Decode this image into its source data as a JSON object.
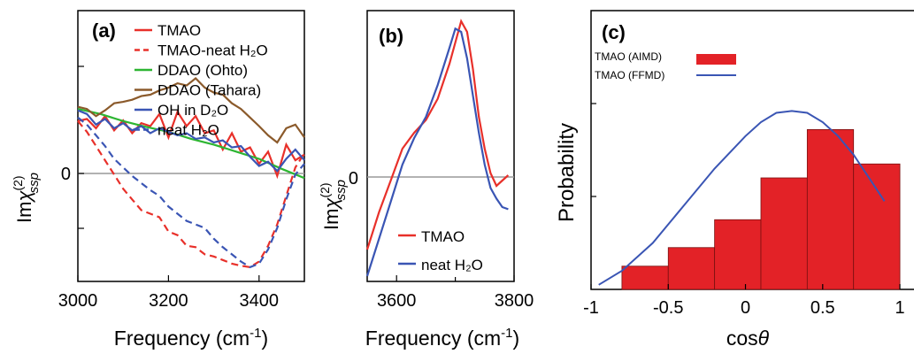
{
  "chart_data": [
    {
      "panel": "(a)",
      "type": "line",
      "xlabel": "Frequency (cm⁻¹)",
      "ylabel": "Imχ(2)ssp",
      "xlim": [
        3000,
        3500
      ],
      "ylim": [
        -2.2,
        1.6
      ],
      "xticks": [
        "3000",
        "3200",
        "3400"
      ],
      "yticks": [
        "0"
      ],
      "legend": "top-right",
      "series": [
        {
          "name": "TMAO",
          "color": "#e8302a",
          "dash": "solid",
          "x": [
            3000,
            3020,
            3040,
            3060,
            3080,
            3100,
            3120,
            3140,
            3160,
            3180,
            3200,
            3220,
            3240,
            3260,
            3280,
            3300,
            3320,
            3340,
            3360,
            3380,
            3400,
            3420,
            3440,
            3460,
            3480,
            3500
          ],
          "y": [
            0.05,
            0.08,
            -0.05,
            0.12,
            -0.08,
            0.06,
            -0.12,
            0.02,
            -0.02,
            0.15,
            -0.18,
            0.18,
            -0.02,
            0.12,
            -0.12,
            -0.08,
            -0.35,
            -0.12,
            -0.38,
            -0.32,
            -0.55,
            -0.38,
            -0.72,
            -0.28,
            -0.5,
            -0.42
          ]
        },
        {
          "name": "TMAO-neat H₂O",
          "color": "#e8302a",
          "dash": "dashed",
          "x": [
            3000,
            3020,
            3040,
            3060,
            3080,
            3100,
            3120,
            3140,
            3160,
            3180,
            3200,
            3220,
            3240,
            3260,
            3280,
            3300,
            3320,
            3340,
            3360,
            3380,
            3400,
            3420,
            3440,
            3460,
            3480,
            3500
          ],
          "y": [
            0.05,
            -0.1,
            -0.3,
            -0.5,
            -0.7,
            -0.9,
            -1.05,
            -1.2,
            -1.25,
            -1.3,
            -1.5,
            -1.55,
            -1.7,
            -1.72,
            -1.82,
            -1.85,
            -1.9,
            -1.95,
            -1.98,
            -2.0,
            -1.92,
            -1.7,
            -1.4,
            -1.0,
            -0.6,
            -0.4
          ]
        },
        {
          "name": "DDAO (Ohto)",
          "color": "#2db532",
          "dash": "solid",
          "x": [
            3000,
            3050,
            3100,
            3150,
            3200,
            3250,
            3300,
            3350,
            3400,
            3450,
            3500
          ],
          "y": [
            0.22,
            0.15,
            0.05,
            -0.03,
            -0.1,
            -0.2,
            -0.28,
            -0.38,
            -0.48,
            -0.62,
            -0.75
          ]
        },
        {
          "name": "DDAO (Tahara)",
          "color": "#8b5a2b",
          "dash": "solid",
          "x": [
            3000,
            3020,
            3040,
            3060,
            3080,
            3100,
            3120,
            3140,
            3160,
            3180,
            3200,
            3220,
            3240,
            3260,
            3280,
            3300,
            3320,
            3340,
            3360,
            3380,
            3400,
            3420,
            3440,
            3460,
            3480,
            3500
          ],
          "y": [
            0.25,
            0.22,
            0.12,
            0.2,
            0.3,
            0.32,
            0.35,
            0.4,
            0.42,
            0.48,
            0.52,
            0.58,
            0.55,
            0.65,
            0.52,
            0.45,
            0.42,
            0.3,
            0.22,
            0.1,
            -0.02,
            -0.15,
            -0.25,
            -0.05,
            0.0,
            -0.18
          ]
        },
        {
          "name": "OH in D₂O",
          "color": "#3a55b4",
          "dash": "solid",
          "x": [
            3000,
            3020,
            3040,
            3060,
            3080,
            3100,
            3120,
            3140,
            3160,
            3180,
            3200,
            3220,
            3240,
            3260,
            3280,
            3300,
            3320,
            3340,
            3360,
            3380,
            3400,
            3420,
            3440,
            3460,
            3480,
            3500
          ],
          "y": [
            0.2,
            0.15,
            0.0,
            0.08,
            -0.05,
            0.02,
            -0.08,
            -0.02,
            -0.12,
            -0.05,
            -0.1,
            -0.15,
            -0.12,
            -0.2,
            -0.18,
            -0.25,
            -0.22,
            -0.32,
            -0.3,
            -0.45,
            -0.58,
            -0.52,
            -0.65,
            -0.48,
            -0.35,
            -0.5
          ]
        },
        {
          "name": "neat H₂O",
          "color": "#3a55b4",
          "dash": "dashed",
          "x": [
            3000,
            3020,
            3040,
            3060,
            3080,
            3100,
            3120,
            3140,
            3160,
            3180,
            3200,
            3220,
            3240,
            3260,
            3280,
            3300,
            3320,
            3340,
            3360,
            3380,
            3400,
            3420,
            3440,
            3460,
            3480,
            3500
          ],
          "y": [
            0.1,
            0.0,
            -0.15,
            -0.3,
            -0.48,
            -0.6,
            -0.72,
            -0.82,
            -0.92,
            -1.0,
            -1.15,
            -1.25,
            -1.35,
            -1.4,
            -1.45,
            -1.6,
            -1.72,
            -1.82,
            -1.92,
            -2.0,
            -1.95,
            -1.75,
            -1.45,
            -1.05,
            -0.7,
            -0.55
          ]
        }
      ]
    },
    {
      "panel": "(b)",
      "type": "line",
      "xlabel": "Frequency (cm⁻¹)",
      "ylabel": "Imχ(2)ssp",
      "xlim": [
        3550,
        3800
      ],
      "ylim": [
        -1.0,
        1.55
      ],
      "xticks": [
        "3600",
        "3800"
      ],
      "yticks": [
        "0"
      ],
      "legend": "bottom-right",
      "series": [
        {
          "name": "TMAO",
          "color": "#e8302a",
          "dash": "solid",
          "x": [
            3550,
            3570,
            3590,
            3610,
            3630,
            3650,
            3670,
            3690,
            3700,
            3710,
            3720,
            3730,
            3740,
            3750,
            3760,
            3770,
            3780,
            3790
          ],
          "y": [
            -0.7,
            -0.35,
            -0.05,
            0.25,
            0.4,
            0.52,
            0.72,
            1.05,
            1.25,
            1.45,
            1.35,
            1.0,
            0.55,
            0.25,
            0.02,
            -0.1,
            -0.05,
            0.0
          ]
        },
        {
          "name": "neat H₂O",
          "color": "#3a55b4",
          "dash": "solid",
          "x": [
            3550,
            3570,
            3590,
            3610,
            3630,
            3650,
            3670,
            3690,
            3700,
            3710,
            3720,
            3730,
            3740,
            3750,
            3760,
            3770,
            3780,
            3790
          ],
          "y": [
            -0.95,
            -0.6,
            -0.25,
            0.1,
            0.35,
            0.55,
            0.85,
            1.2,
            1.38,
            1.35,
            1.1,
            0.75,
            0.4,
            0.1,
            -0.12,
            -0.22,
            -0.3,
            -0.32
          ]
        }
      ]
    },
    {
      "panel": "(c)",
      "type": "bar",
      "xlabel": "cosθ",
      "ylabel": "Probability",
      "xlim": [
        -1,
        1.12
      ],
      "ylim": [
        0,
        0.3
      ],
      "xticks": [
        "-1",
        "-0.5",
        "0",
        "0.5",
        "1"
      ],
      "legend": "top-left",
      "series": [
        {
          "name": "TMAO (AIMD)",
          "color": "#e32227",
          "kind": "bar",
          "bin_edges": [
            -1.0,
            -0.8,
            -0.5,
            -0.2,
            0.1,
            0.4,
            0.7,
            1.0
          ],
          "values": [
            0.0,
            0.025,
            0.045,
            0.075,
            0.12,
            0.172,
            0.135
          ]
        },
        {
          "name": "TMAO (FFMD)",
          "color": "#3a55b4",
          "kind": "line",
          "x": [
            -0.95,
            -0.8,
            -0.6,
            -0.4,
            -0.2,
            0.0,
            0.1,
            0.2,
            0.3,
            0.4,
            0.5,
            0.6,
            0.7,
            0.8,
            0.9
          ],
          "y": [
            0.005,
            0.02,
            0.05,
            0.09,
            0.13,
            0.165,
            0.18,
            0.19,
            0.192,
            0.19,
            0.18,
            0.165,
            0.145,
            0.12,
            0.095
          ]
        }
      ]
    }
  ]
}
